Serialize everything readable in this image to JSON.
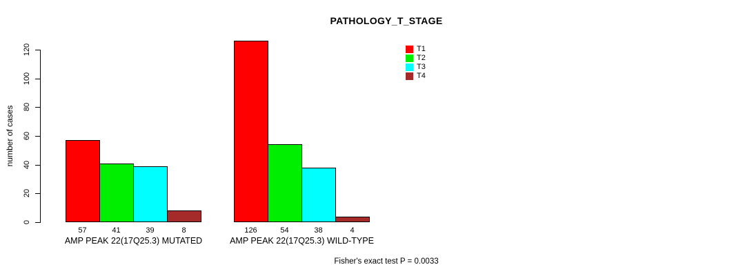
{
  "chart_data": {
    "type": "bar",
    "title": "PATHOLOGY_T_STAGE",
    "ylabel": "number of cases",
    "xlabel": "",
    "ylim": [
      0,
      120
    ],
    "yticks": [
      0,
      20,
      40,
      60,
      80,
      100,
      120
    ],
    "grid": false,
    "bar_value_labels_shown": true,
    "legend": {
      "position": "top-right",
      "entries": [
        {
          "label": "T1",
          "color": "#FF0000"
        },
        {
          "label": "T2",
          "color": "#00EE00"
        },
        {
          "label": "T3",
          "color": "#00FFFF"
        },
        {
          "label": "T4",
          "color": "#A52A2A"
        }
      ]
    },
    "groups": [
      {
        "label": "AMP PEAK 22(17Q25.3) MUTATED",
        "values": [
          57,
          41,
          39,
          8
        ]
      },
      {
        "label": "AMP PEAK 22(17Q25.3) WILD-TYPE",
        "values": [
          126,
          54,
          38,
          4
        ]
      }
    ],
    "series": [
      {
        "name": "T1",
        "color": "#FF0000",
        "values": [
          57,
          126
        ]
      },
      {
        "name": "T2",
        "color": "#00EE00",
        "values": [
          41,
          54
        ]
      },
      {
        "name": "T3",
        "color": "#00FFFF",
        "values": [
          39,
          38
        ]
      },
      {
        "name": "T4",
        "color": "#A52A2A",
        "values": [
          8,
          4
        ]
      }
    ],
    "annotation": "Fisher's exact test P = 0.0033"
  }
}
